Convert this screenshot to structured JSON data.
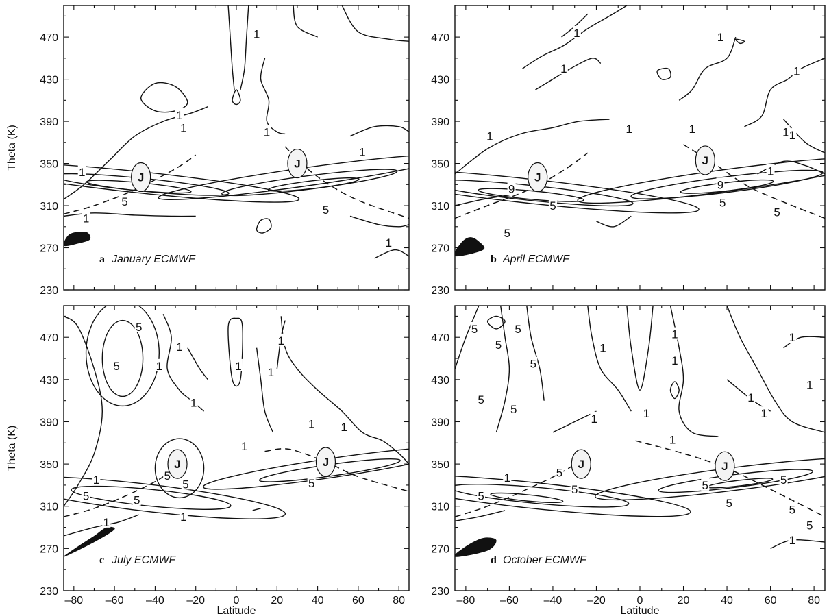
{
  "chart_data": [
    {
      "type": "contour",
      "panel": "a",
      "title": "January ECMWF",
      "xlabel": "",
      "ylabel": "Theta (K)",
      "xlim": [
        -85,
        85
      ],
      "ylim": [
        230,
        500
      ],
      "xticks": [
        "–80",
        "–60",
        "–40",
        "–20",
        "0",
        "20",
        "40",
        "60",
        "80"
      ],
      "yticks": [
        "230",
        "270",
        "310",
        "350",
        "390",
        "430",
        "470"
      ],
      "jets": [
        {
          "x": -47,
          "y": 337
        },
        {
          "x": 30,
          "y": 350
        }
      ],
      "contour_labels": [
        {
          "text": "1",
          "x": -76,
          "y": 342
        },
        {
          "text": "1",
          "x": -28,
          "y": 396
        },
        {
          "text": "1",
          "x": -26,
          "y": 384
        },
        {
          "text": "1",
          "x": -74,
          "y": 298
        },
        {
          "text": "5",
          "x": -55,
          "y": 314
        },
        {
          "text": "1",
          "x": 15,
          "y": 380
        },
        {
          "text": "5",
          "x": 44,
          "y": 306
        },
        {
          "text": "1",
          "x": 62,
          "y": 361
        },
        {
          "text": "1",
          "x": 10,
          "y": 473
        },
        {
          "text": "1",
          "x": 75,
          "y": 275
        }
      ]
    },
    {
      "type": "contour",
      "panel": "b",
      "title": "April ECMWF",
      "xlabel": "",
      "ylabel": "",
      "xlim": [
        -85,
        85
      ],
      "ylim": [
        230,
        500
      ],
      "xticks": [
        "–80",
        "–60",
        "–40",
        "–20",
        "0",
        "20",
        "40",
        "60",
        "80"
      ],
      "yticks": [
        "230",
        "270",
        "310",
        "350",
        "390",
        "430",
        "470"
      ],
      "jets": [
        {
          "x": -47,
          "y": 337
        },
        {
          "x": 30,
          "y": 353
        }
      ],
      "contour_labels": [
        {
          "text": "1",
          "x": -69,
          "y": 376
        },
        {
          "text": "1",
          "x": -35,
          "y": 440
        },
        {
          "text": "1",
          "x": -5,
          "y": 383
        },
        {
          "text": "1",
          "x": -29,
          "y": 474
        },
        {
          "text": "1",
          "x": 24,
          "y": 383
        },
        {
          "text": "1",
          "x": 67,
          "y": 380
        },
        {
          "text": "1",
          "x": 72,
          "y": 438
        },
        {
          "text": "1",
          "x": 37,
          "y": 470
        },
        {
          "text": "1",
          "x": 70,
          "y": 377
        },
        {
          "text": "1",
          "x": 60,
          "y": 343
        },
        {
          "text": "9",
          "x": -59,
          "y": 326
        },
        {
          "text": "5",
          "x": -40,
          "y": 310
        },
        {
          "text": "9",
          "x": 37,
          "y": 330
        },
        {
          "text": "5",
          "x": 38,
          "y": 313
        },
        {
          "text": "5",
          "x": 63,
          "y": 304
        },
        {
          "text": "5",
          "x": -61,
          "y": 284
        }
      ]
    },
    {
      "type": "contour",
      "panel": "c",
      "title": "July ECMWF",
      "xlabel": "Latitude",
      "ylabel": "Theta (K)",
      "xlim": [
        -85,
        85
      ],
      "ylim": [
        230,
        500
      ],
      "xticks": [
        "–80",
        "–60",
        "–40",
        "–20",
        "0",
        "20",
        "40",
        "60",
        "80"
      ],
      "yticks": [
        "230",
        "270",
        "310",
        "350",
        "390",
        "430",
        "470"
      ],
      "jets": [
        {
          "x": -29,
          "y": 350
        },
        {
          "x": 44,
          "y": 352
        }
      ],
      "contour_labels": [
        {
          "text": "5",
          "x": -48,
          "y": 480
        },
        {
          "text": "5",
          "x": -59,
          "y": 443
        },
        {
          "text": "1",
          "x": -38,
          "y": 443
        },
        {
          "text": "1",
          "x": -28,
          "y": 461
        },
        {
          "text": "1",
          "x": -21,
          "y": 408
        },
        {
          "text": "1",
          "x": -69,
          "y": 335
        },
        {
          "text": "5",
          "x": -74,
          "y": 320
        },
        {
          "text": "5",
          "x": -49,
          "y": 316
        },
        {
          "text": "5",
          "x": -34,
          "y": 339
        },
        {
          "text": "5",
          "x": -25,
          "y": 331
        },
        {
          "text": "1",
          "x": 1,
          "y": 443
        },
        {
          "text": "1",
          "x": 17,
          "y": 437
        },
        {
          "text": "1",
          "x": 22,
          "y": 467
        },
        {
          "text": "1",
          "x": 4,
          "y": 367
        },
        {
          "text": "1",
          "x": 37,
          "y": 388
        },
        {
          "text": "1",
          "x": 53,
          "y": 385
        },
        {
          "text": "5",
          "x": 37,
          "y": 332
        },
        {
          "text": "1",
          "x": -64,
          "y": 295
        },
        {
          "text": "1",
          "x": -26,
          "y": 300
        }
      ]
    },
    {
      "type": "contour",
      "panel": "d",
      "title": "October ECMWF",
      "xlabel": "Latitude",
      "ylabel": "",
      "xlim": [
        -85,
        85
      ],
      "ylim": [
        230,
        500
      ],
      "xticks": [
        "–80",
        "–60",
        "–40",
        "–20",
        "0",
        "20",
        "40",
        "60",
        "80"
      ],
      "yticks": [
        "230",
        "270",
        "310",
        "350",
        "390",
        "430",
        "470"
      ],
      "jets": [
        {
          "x": -27,
          "y": 350
        },
        {
          "x": 39,
          "y": 348
        }
      ],
      "contour_labels": [
        {
          "text": "5",
          "x": -76,
          "y": 478
        },
        {
          "text": "5",
          "x": -65,
          "y": 463
        },
        {
          "text": "5",
          "x": -56,
          "y": 478
        },
        {
          "text": "5",
          "x": -49,
          "y": 445
        },
        {
          "text": "5",
          "x": -73,
          "y": 411
        },
        {
          "text": "5",
          "x": -58,
          "y": 402
        },
        {
          "text": "1",
          "x": -17,
          "y": 460
        },
        {
          "text": "1",
          "x": 16,
          "y": 448
        },
        {
          "text": "1",
          "x": 16,
          "y": 473
        },
        {
          "text": "1",
          "x": 15,
          "y": 373
        },
        {
          "text": "1",
          "x": 3,
          "y": 398
        },
        {
          "text": "1",
          "x": -21,
          "y": 393
        },
        {
          "text": "1",
          "x": -61,
          "y": 337
        },
        {
          "text": "5",
          "x": -37,
          "y": 342
        },
        {
          "text": "5",
          "x": -73,
          "y": 320
        },
        {
          "text": "5",
          "x": -30,
          "y": 326
        },
        {
          "text": "1",
          "x": 51,
          "y": 413
        },
        {
          "text": "1",
          "x": 57,
          "y": 398
        },
        {
          "text": "1",
          "x": 70,
          "y": 470
        },
        {
          "text": "1",
          "x": 78,
          "y": 425
        },
        {
          "text": "5",
          "x": 66,
          "y": 335
        },
        {
          "text": "5",
          "x": 70,
          "y": 307
        },
        {
          "text": "5",
          "x": 78,
          "y": 292
        },
        {
          "text": "1",
          "x": 70,
          "y": 278
        },
        {
          "text": "5",
          "x": 30,
          "y": 330
        },
        {
          "text": "5",
          "x": 41,
          "y": 313
        }
      ]
    }
  ]
}
